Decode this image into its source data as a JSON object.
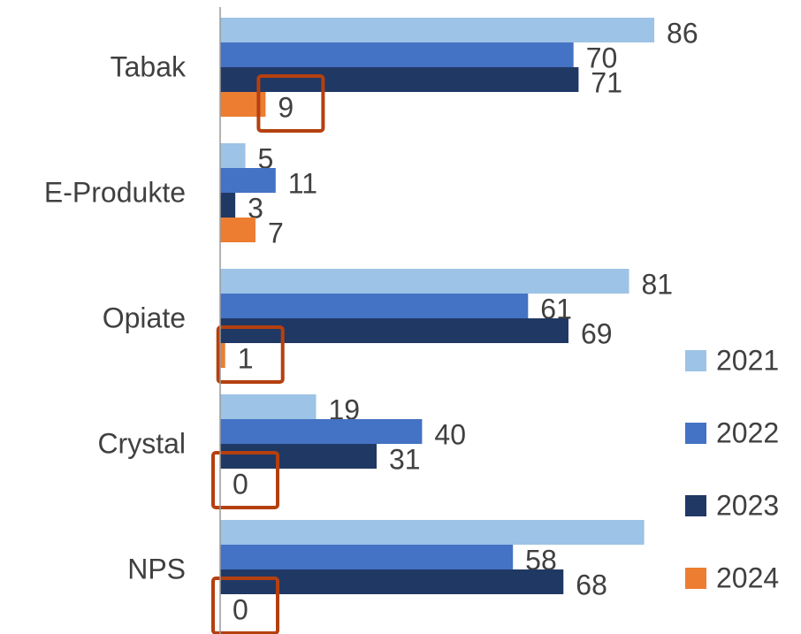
{
  "chart_data": {
    "type": "bar",
    "orientation": "horizontal",
    "categories": [
      "Tabak",
      "E-Produkte",
      "Opiate",
      "Crystal",
      "NPS"
    ],
    "series": [
      {
        "name": "2021",
        "color": "#9dc3e6",
        "values": [
          86,
          5,
          81,
          19,
          84
        ],
        "value_labels": [
          "86",
          "5",
          "81",
          "19",
          null
        ]
      },
      {
        "name": "2022",
        "color": "#4472c4",
        "values": [
          70,
          11,
          61,
          40,
          58
        ]
      },
      {
        "name": "2023",
        "color": "#203864",
        "values": [
          71,
          3,
          69,
          31,
          68
        ]
      },
      {
        "name": "2024",
        "color": "#ed7d31",
        "values": [
          9,
          7,
          1,
          0,
          0
        ]
      }
    ],
    "xlim": [
      0,
      100
    ],
    "legend": "right",
    "highlight": {
      "series": 3,
      "categories": [
        0,
        2,
        3,
        4
      ],
      "color": "#b5400f"
    }
  }
}
